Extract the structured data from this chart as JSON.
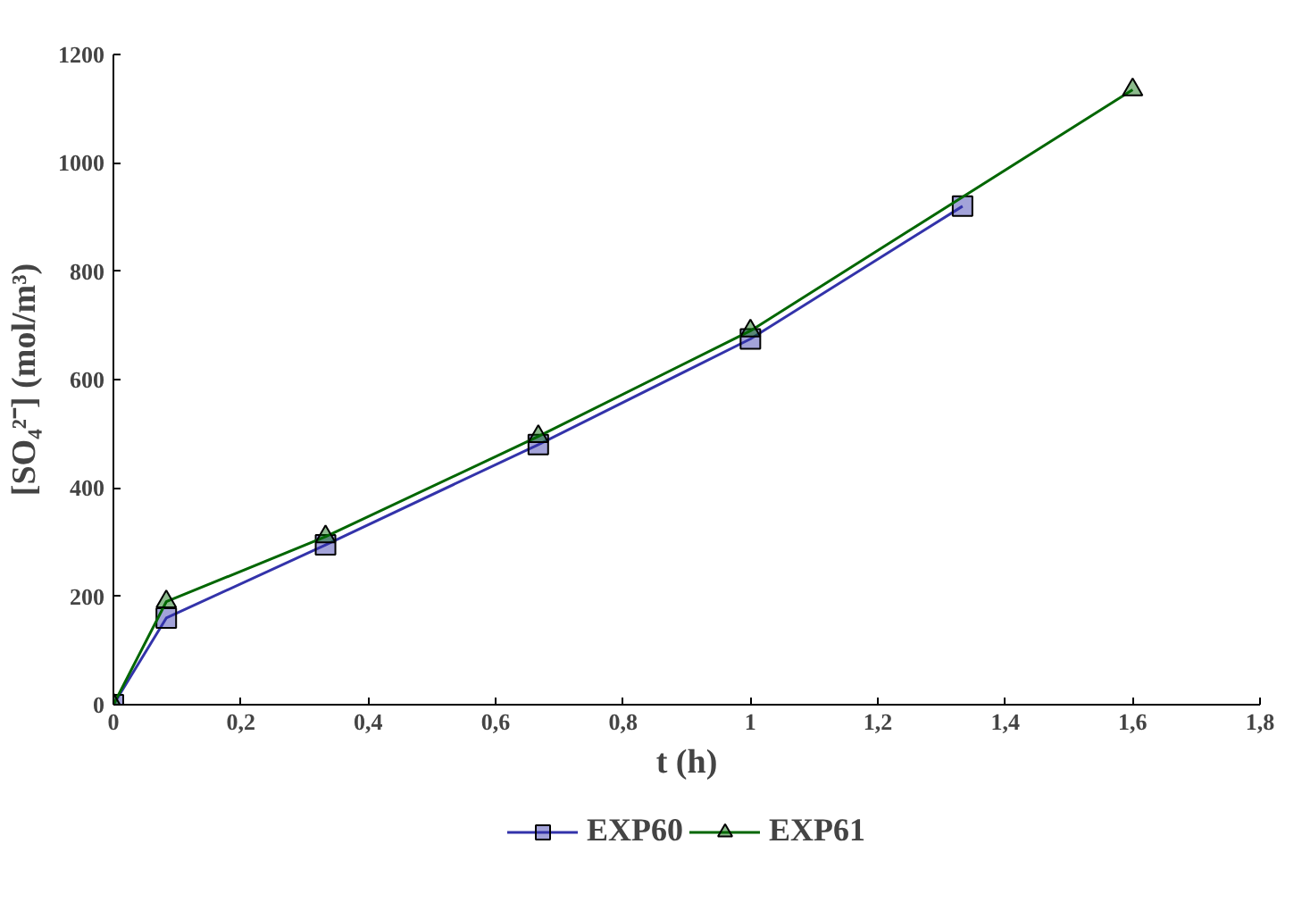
{
  "chart_data": {
    "type": "line",
    "xlabel": "t (h)",
    "ylabel": "[SO₄²⁻] (mol/m³)",
    "xlim": [
      0,
      1.8
    ],
    "xticks": [
      0,
      {
        "value": 0.2,
        "label": "0,2"
      },
      {
        "value": 0.4,
        "label": "0,4"
      },
      {
        "value": 0.6,
        "label": "0,6"
      },
      {
        "value": 0.8,
        "label": "0,8"
      },
      1,
      {
        "value": 1.2,
        "label": "1,2"
      },
      {
        "value": 1.4,
        "label": "1,4"
      },
      {
        "value": 1.6,
        "label": "1,6"
      },
      {
        "value": 1.8,
        "label": "1,8"
      }
    ],
    "ylim": [
      0,
      1200
    ],
    "yticks": [
      0,
      200,
      400,
      600,
      800,
      1000,
      1200
    ],
    "grid": false,
    "legend": "bottom",
    "series": [
      {
        "name": "EXP60",
        "color": "#3333aa",
        "marker": "square",
        "x": [
          0,
          0.083,
          0.333,
          0.667,
          1.0,
          1.333
        ],
        "values": [
          0,
          160,
          295,
          480,
          675,
          920
        ]
      },
      {
        "name": "EXP61",
        "color": "#006600",
        "marker": "triangle",
        "x": [
          0,
          0.083,
          0.333,
          0.667,
          1.0,
          1.6
        ],
        "values": [
          0,
          190,
          310,
          495,
          690,
          1135
        ]
      }
    ]
  }
}
